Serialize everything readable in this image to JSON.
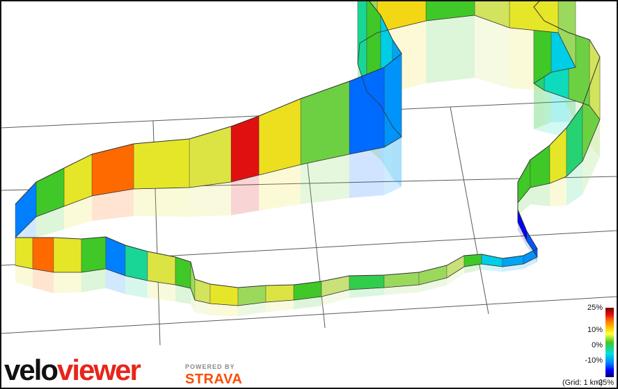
{
  "legend": {
    "labels": [
      "25%",
      "10%",
      "0%",
      "-10%",
      "-25%"
    ],
    "grid_note": "(Grid: 1 km)"
  },
  "brand": {
    "velo": "velo",
    "viewer": "viewer",
    "powered_by": "POWERED BY",
    "strava": "STRAVA"
  },
  "colors": {
    "steep_climb": "#8b0000",
    "climb": "#ff6a00",
    "gentle_climb": "#e6e62a",
    "flat": "#3cc83c",
    "descent": "#00e0e0",
    "steep_descent": "#0020d0",
    "brand_red": "#e8251a",
    "strava_orange": "#fc4c02"
  },
  "route_gradients_percent": [
    6,
    14,
    6,
    0,
    -10,
    -3,
    5,
    0,
    2,
    4,
    6,
    2,
    5,
    0,
    3,
    -1,
    2,
    2,
    3,
    0,
    -6,
    -8,
    -9,
    -12,
    -16,
    -20,
    0,
    0,
    6,
    -2,
    1,
    4,
    1,
    -4,
    -2,
    0,
    -6,
    2,
    6,
    4,
    0,
    8,
    2,
    0,
    -3,
    0,
    -6,
    -8,
    -9,
    -11,
    1,
    7,
    20,
    5
  ]
}
